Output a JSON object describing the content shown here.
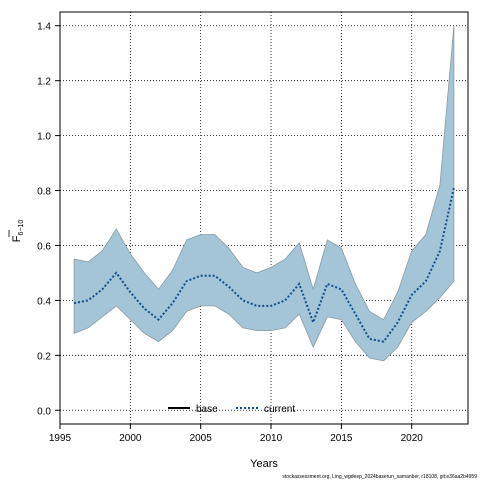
{
  "chart_data": {
    "type": "line",
    "xlabel": "Years",
    "ylabel_base": "F",
    "ylabel_sub": "6−10",
    "xlim": [
      1995,
      2024
    ],
    "ylim": [
      -0.05,
      1.45
    ],
    "x_ticks": [
      1995,
      2000,
      2005,
      2010,
      2015,
      2020
    ],
    "y_ticks": [
      0.0,
      0.2,
      0.4,
      0.6,
      0.8,
      1.0,
      1.2,
      1.4
    ],
    "x_tick_labels": [
      "1995",
      "2000",
      "2005",
      "2010",
      "2015",
      "2020"
    ],
    "y_tick_labels": [
      "0.0",
      "0.2",
      "0.4",
      "0.6",
      "0.8",
      "1.0",
      "1.2",
      "1.4"
    ],
    "grid": true,
    "legend_position": "bottom",
    "x": [
      1996,
      1997,
      1998,
      1999,
      2000,
      2001,
      2002,
      2003,
      2004,
      2005,
      2006,
      2007,
      2008,
      2009,
      2010,
      2011,
      2012,
      2013,
      2014,
      2015,
      2016,
      2017,
      2018,
      2019,
      2020,
      2021,
      2022,
      2023
    ],
    "series": [
      {
        "name": "base",
        "style": "solid",
        "color": "#000000",
        "values": [
          null,
          null,
          null,
          null,
          null,
          null,
          null,
          null,
          null,
          null,
          null,
          null,
          null,
          null,
          null,
          null,
          null,
          null,
          null,
          null,
          null,
          null,
          null,
          null,
          null,
          null,
          null,
          null
        ]
      },
      {
        "name": "current",
        "style": "dotted",
        "color": "#104e8b",
        "values": [
          0.39,
          0.4,
          0.44,
          0.5,
          0.43,
          0.37,
          0.33,
          0.39,
          0.47,
          0.49,
          0.49,
          0.45,
          0.4,
          0.38,
          0.38,
          0.4,
          0.46,
          0.32,
          0.46,
          0.44,
          0.35,
          0.26,
          0.25,
          0.32,
          0.42,
          0.47,
          0.58,
          0.81
        ]
      }
    ],
    "band": {
      "color": "#a3c5d7",
      "lower": [
        0.28,
        0.3,
        0.34,
        0.38,
        0.33,
        0.28,
        0.25,
        0.29,
        0.36,
        0.38,
        0.38,
        0.35,
        0.3,
        0.29,
        0.29,
        0.3,
        0.35,
        0.23,
        0.34,
        0.33,
        0.25,
        0.19,
        0.18,
        0.23,
        0.32,
        0.36,
        0.41,
        0.47
      ],
      "upper": [
        0.55,
        0.54,
        0.58,
        0.66,
        0.57,
        0.5,
        0.44,
        0.51,
        0.62,
        0.64,
        0.64,
        0.59,
        0.52,
        0.5,
        0.52,
        0.55,
        0.61,
        0.44,
        0.62,
        0.59,
        0.46,
        0.36,
        0.33,
        0.43,
        0.58,
        0.64,
        0.82,
        1.4
      ]
    }
  },
  "footnote": "stockassessment.org, Ling_wgdeep_2024baserun_samanber, r18108, git:e36aa2b4959"
}
